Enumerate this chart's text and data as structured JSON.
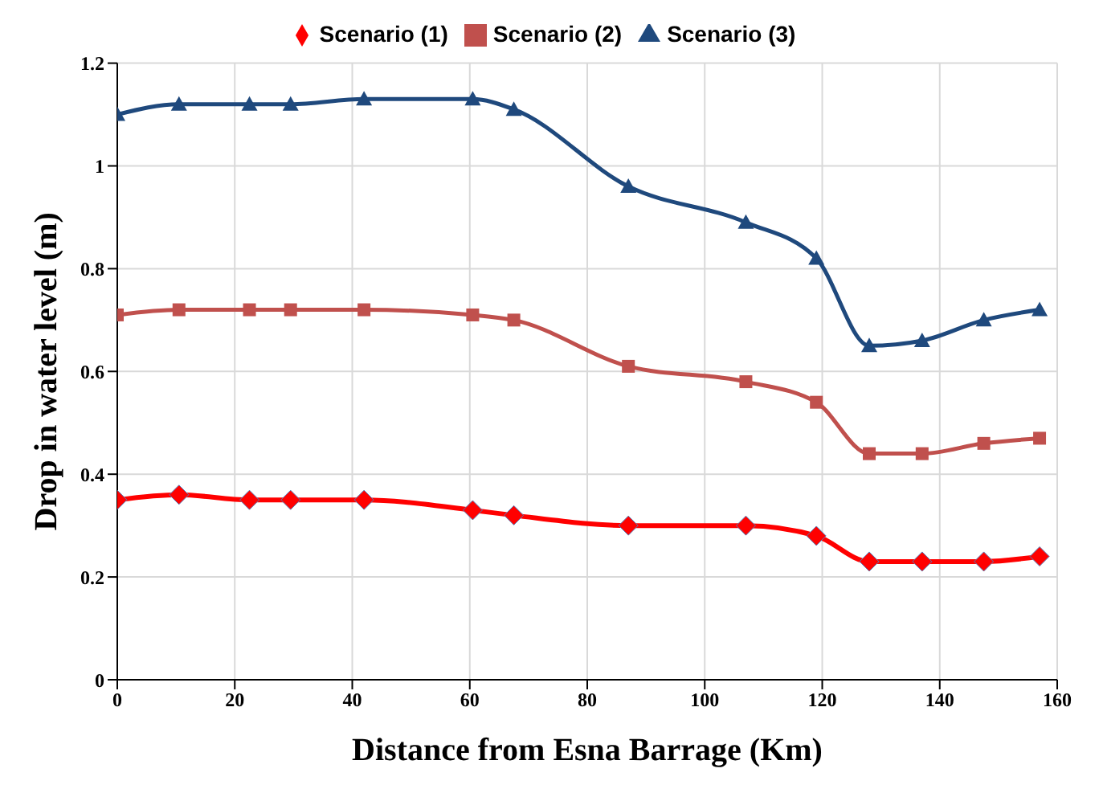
{
  "chart_data": {
    "type": "line",
    "xlabel": "Distance from Esna Barrage (Km)",
    "ylabel": "Drop in water level (m)",
    "x": [
      0,
      10.5,
      22.5,
      29.5,
      42,
      60.5,
      67.5,
      87,
      107,
      119,
      128,
      137,
      147.5,
      157
    ],
    "series": [
      {
        "name": "Scenario (1)",
        "color": "#ff0000",
        "marker": "diamond",
        "values": [
          0.35,
          0.36,
          0.35,
          0.35,
          0.35,
          0.33,
          0.32,
          0.3,
          0.3,
          0.28,
          0.23,
          0.23,
          0.23,
          0.24
        ]
      },
      {
        "name": "Scenario (2)",
        "color": "#c0504d",
        "marker": "square",
        "values": [
          0.71,
          0.72,
          0.72,
          0.72,
          0.72,
          0.71,
          0.7,
          0.61,
          0.58,
          0.54,
          0.44,
          0.44,
          0.46,
          0.47
        ]
      },
      {
        "name": "Scenario (3)",
        "color": "#1f497d",
        "marker": "triangle",
        "values": [
          1.1,
          1.12,
          1.12,
          1.12,
          1.13,
          1.13,
          1.11,
          0.96,
          0.89,
          0.82,
          0.65,
          0.66,
          0.7,
          0.72
        ]
      }
    ],
    "xlim": [
      0,
      160
    ],
    "xticks": [
      0,
      20,
      40,
      60,
      80,
      100,
      120,
      140,
      160
    ],
    "ylim": [
      0,
      1.2
    ],
    "yticks": [
      0,
      {
        "value": 0.2,
        "label": "0.2"
      },
      {
        "value": 0.4,
        "label": "0.4"
      },
      {
        "value": 0.6,
        "label": "0.6"
      },
      {
        "value": 0.8,
        "label": "0.8"
      },
      1,
      {
        "value": 1.2,
        "label": "1.2"
      }
    ],
    "grid": true,
    "legend": "top",
    "line_style": "solid"
  }
}
